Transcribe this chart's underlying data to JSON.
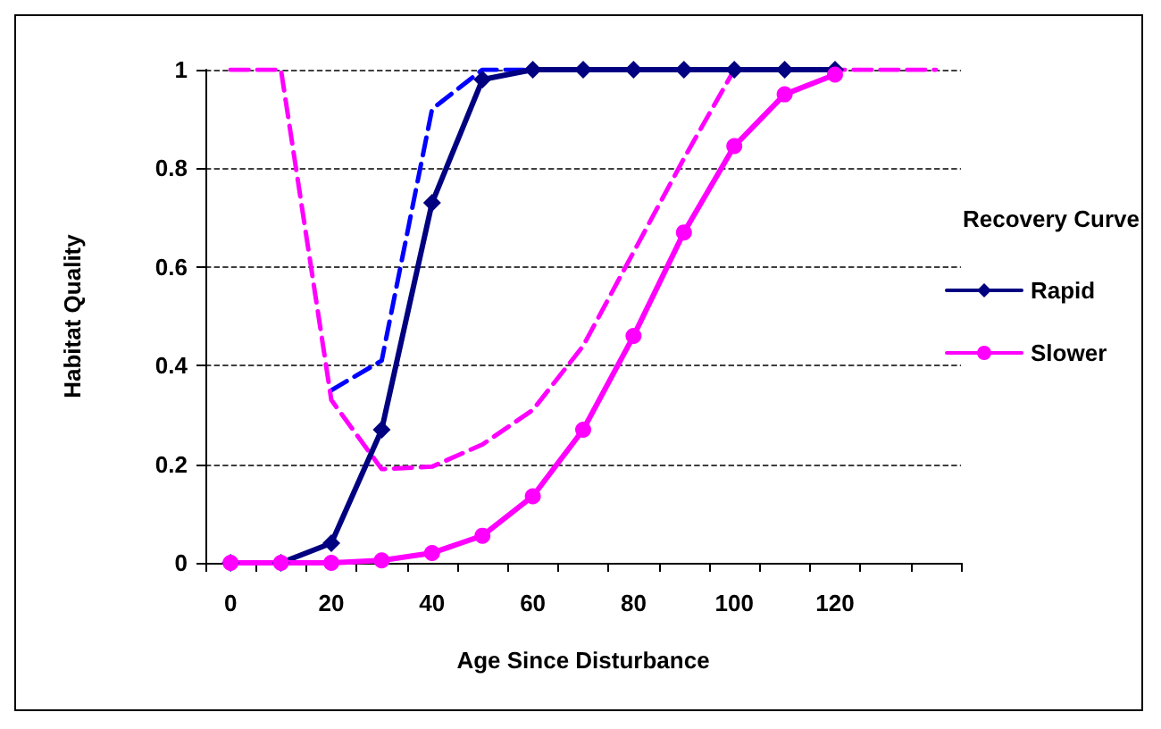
{
  "chart_data": {
    "type": "line",
    "xlabel": "Age Since Disturbance",
    "ylabel": "Habitat Quality",
    "legend_title": "Recovery Curve",
    "legend": "right",
    "categories": [
      "0",
      null,
      "20",
      null,
      "40",
      null,
      "60",
      null,
      "80",
      null,
      "100",
      null,
      "120",
      null,
      null
    ],
    "ylim": [
      0,
      1
    ],
    "yticks": [
      0,
      0.2,
      0.4,
      0.6,
      0.8,
      1
    ],
    "grid": "y",
    "series": [
      {
        "name": "Rapid",
        "color": "#000080",
        "marker": "diamond",
        "line_style": "solid",
        "values": [
          0,
          0,
          0.04,
          0.27,
          0.73,
          0.98,
          1,
          1,
          1,
          1,
          1,
          1,
          1,
          null,
          null
        ]
      },
      {
        "name": "Slower",
        "color": "#ff00ff",
        "marker": "circle",
        "line_style": "solid",
        "values": [
          0,
          0,
          0,
          0.005,
          0.02,
          0.055,
          0.135,
          0.27,
          0.46,
          0.67,
          0.845,
          0.95,
          0.99,
          null,
          null
        ]
      },
      {
        "color": "#0000ff",
        "marker": "none",
        "line_style": "dashed",
        "values": [
          null,
          null,
          0.35,
          0.41,
          0.92,
          1,
          1,
          null,
          null,
          null,
          null,
          null,
          null,
          null,
          null
        ]
      },
      {
        "color": "#ff00ff",
        "marker": "none",
        "line_style": "dashed",
        "values": [
          1,
          1,
          0.33,
          0.19,
          0.195,
          0.24,
          0.31,
          0.44,
          0.63,
          0.82,
          1,
          1,
          1,
          1,
          1
        ]
      }
    ]
  }
}
